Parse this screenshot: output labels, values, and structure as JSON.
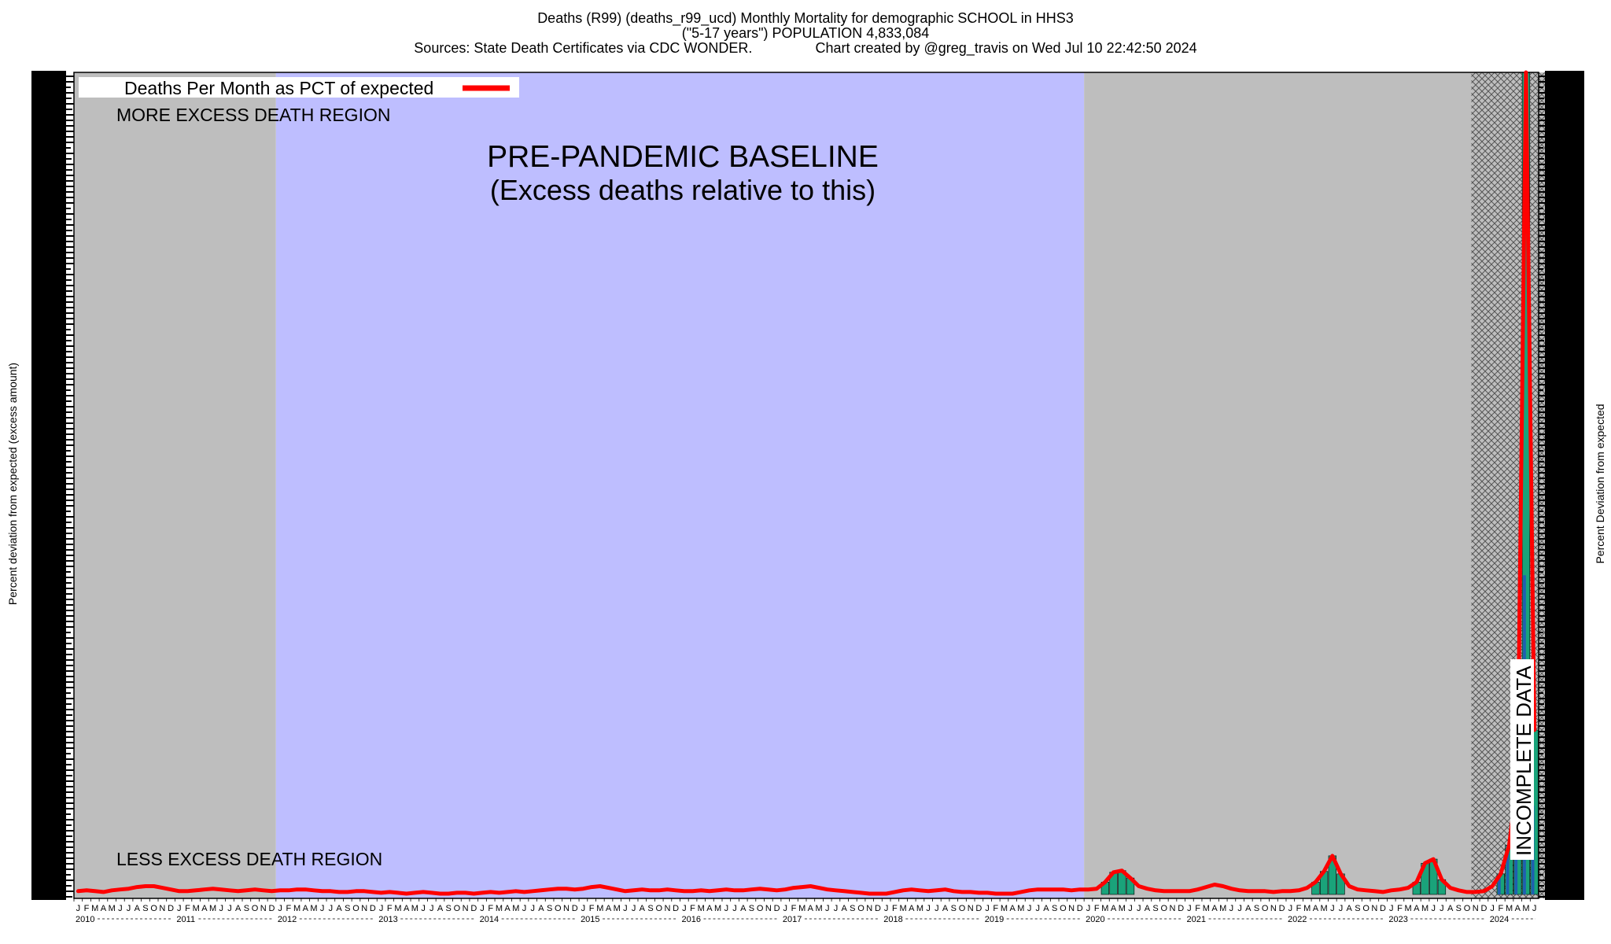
{
  "chart_data": {
    "type": "line",
    "title_lines": [
      "Deaths (R99) (deaths_r99_ucd) Monthly Mortality for demographic SCHOOL in HHS3",
      "(\"5-17 years\") POPULATION 4,833,084",
      "Sources: State Death Certificates via CDC WONDER.                Chart created by @greg_travis on Wed Jul 10 22:42:50 2024"
    ],
    "ylabel_left": "Percent deviation from expected (excess amount)",
    "ylabel_right": "Percent Deviation from expected",
    "legend": {
      "label": "Deaths Per Month as PCT of expected",
      "color": "#ff0000",
      "placement": "top-left"
    },
    "regions": [
      {
        "name": "excess-comparison-early",
        "start": "2010-01",
        "end": "2011-12",
        "color": "#bebebe"
      },
      {
        "name": "pre-pandemic-baseline",
        "start": "2012-01",
        "end": "2019-12",
        "color": "#bebeff"
      },
      {
        "name": "excess-comparison-late",
        "start": "2020-01",
        "end": "2023-10",
        "color": "#bebebe"
      },
      {
        "name": "incomplete-data",
        "start": "2023-11",
        "end": "2024-07",
        "color": "#bebebe",
        "hatched": true
      }
    ],
    "annotations": {
      "more_excess": "MORE EXCESS DEATH REGION",
      "less_excess": "LESS EXCESS DEATH REGION",
      "baseline_line1": "PRE-PANDEMIC BASELINE",
      "baseline_line2": "(Excess deaths relative to this)",
      "incomplete": "INCOMPLETE DATA"
    },
    "x_start": "2010-01",
    "x_end": "2024-06",
    "month_letters": [
      "J",
      "F",
      "M",
      "A",
      "M",
      "J",
      "J",
      "A",
      "S",
      "O",
      "N",
      "D"
    ],
    "years": [
      "2010",
      "2011",
      "2012",
      "2013",
      "2014",
      "2015",
      "2016",
      "2017",
      "2018",
      "2019",
      "2020",
      "2021",
      "2022",
      "2023",
      "2024"
    ],
    "ylim": [
      0,
      100
    ],
    "series": [
      {
        "name": "Deaths Per Month as PCT of expected",
        "color": "#ff0000",
        "values": [
          0.4,
          0.5,
          0.4,
          0.3,
          0.5,
          0.6,
          0.7,
          0.9,
          1.0,
          1.0,
          0.8,
          0.6,
          0.4,
          0.4,
          0.5,
          0.6,
          0.7,
          0.6,
          0.5,
          0.4,
          0.5,
          0.6,
          0.5,
          0.4,
          0.5,
          0.5,
          0.6,
          0.6,
          0.5,
          0.4,
          0.4,
          0.3,
          0.3,
          0.4,
          0.4,
          0.3,
          0.2,
          0.3,
          0.2,
          0.1,
          0.2,
          0.3,
          0.2,
          0.1,
          0.1,
          0.2,
          0.2,
          0.1,
          0.2,
          0.3,
          0.2,
          0.3,
          0.4,
          0.3,
          0.4,
          0.5,
          0.6,
          0.7,
          0.7,
          0.6,
          0.7,
          0.9,
          1.0,
          0.8,
          0.6,
          0.4,
          0.5,
          0.6,
          0.5,
          0.5,
          0.6,
          0.5,
          0.4,
          0.4,
          0.5,
          0.4,
          0.5,
          0.6,
          0.5,
          0.5,
          0.6,
          0.7,
          0.6,
          0.5,
          0.6,
          0.8,
          0.9,
          1.0,
          0.8,
          0.6,
          0.5,
          0.4,
          0.3,
          0.2,
          0.1,
          0.1,
          0.1,
          0.3,
          0.5,
          0.6,
          0.5,
          0.4,
          0.5,
          0.6,
          0.4,
          0.3,
          0.3,
          0.2,
          0.2,
          0.1,
          0.1,
          0.1,
          0.3,
          0.5,
          0.6,
          0.6,
          0.6,
          0.6,
          0.5,
          0.6,
          0.6,
          0.7,
          1.5,
          2.7,
          2.9,
          2.0,
          1.0,
          0.7,
          0.5,
          0.4,
          0.4,
          0.4,
          0.4,
          0.6,
          0.9,
          1.2,
          1.0,
          0.7,
          0.5,
          0.4,
          0.4,
          0.4,
          0.3,
          0.4,
          0.4,
          0.5,
          0.8,
          1.5,
          2.8,
          4.7,
          2.5,
          1.0,
          0.6,
          0.5,
          0.4,
          0.3,
          0.5,
          0.6,
          0.8,
          1.5,
          3.8,
          4.3,
          1.8,
          0.8,
          0.5,
          0.3,
          0.3,
          0.4,
          1.0,
          2.5,
          6.0,
          14.0,
          100.0,
          20.0
        ]
      }
    ]
  }
}
